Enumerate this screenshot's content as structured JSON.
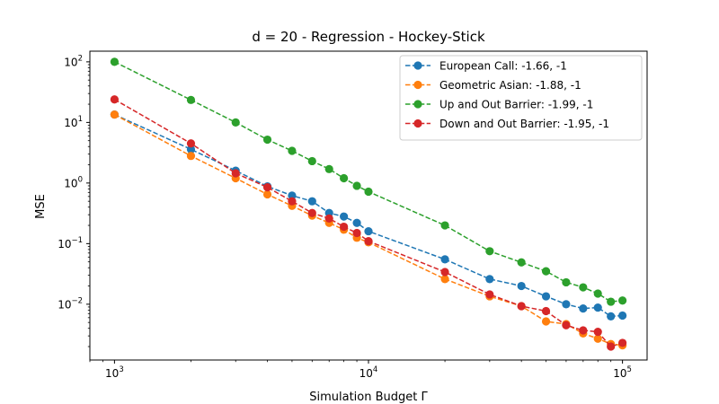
{
  "chart_data": {
    "type": "line",
    "title": "d = 20 - Regression - Hockey-Stick",
    "xlabel": "Simulation Budget Γ",
    "ylabel": "MSE",
    "xscale": "log",
    "yscale": "log",
    "xlim": [
      800,
      125000
    ],
    "ylim": [
      0.0012,
      150
    ],
    "x_ticks": [
      {
        "value": 1000,
        "base": "10",
        "exp": "3"
      },
      {
        "value": 10000,
        "base": "10",
        "exp": "4"
      },
      {
        "value": 100000,
        "base": "10",
        "exp": "5"
      }
    ],
    "y_ticks": [
      {
        "value": 0.01,
        "base": "10",
        "exp": "−2"
      },
      {
        "value": 0.1,
        "base": "10",
        "exp": "−1"
      },
      {
        "value": 1,
        "base": "10",
        "exp": "0"
      },
      {
        "value": 10,
        "base": "10",
        "exp": "1"
      },
      {
        "value": 100,
        "base": "10",
        "exp": "2"
      }
    ],
    "grid": false,
    "legend_position": "top-right",
    "x": [
      1000,
      2000,
      3000,
      4000,
      5000,
      6000,
      7000,
      8000,
      9000,
      10000,
      20000,
      30000,
      40000,
      50000,
      60000,
      70000,
      80000,
      90000,
      100000
    ],
    "series": [
      {
        "name": "European Call: -1.66, -1",
        "color": "#1f77b4",
        "values": [
          13.5,
          3.6,
          1.6,
          0.88,
          0.62,
          0.5,
          0.32,
          0.28,
          0.22,
          0.16,
          0.055,
          0.026,
          0.02,
          0.0135,
          0.01,
          0.0085,
          0.0088,
          0.0063,
          0.0065
        ]
      },
      {
        "name": "Geometric Asian: -1.88, -1",
        "color": "#ff7f0e",
        "values": [
          13.5,
          2.8,
          1.2,
          0.65,
          0.42,
          0.29,
          0.22,
          0.17,
          0.125,
          0.105,
          0.026,
          0.0135,
          0.0093,
          0.0052,
          0.0047,
          0.0033,
          0.0027,
          0.0022,
          0.0021
        ]
      },
      {
        "name": "Up and Out Barrier: -1.99, -1",
        "color": "#2ca02c",
        "values": [
          100,
          23.5,
          10,
          5.2,
          3.4,
          2.3,
          1.7,
          1.2,
          0.9,
          0.72,
          0.2,
          0.075,
          0.049,
          0.035,
          0.023,
          0.019,
          0.015,
          0.011,
          0.0115
        ]
      },
      {
        "name": "Down and Out Barrier: -1.95, -1",
        "color": "#d62728",
        "values": [
          24,
          4.5,
          1.45,
          0.85,
          0.5,
          0.32,
          0.26,
          0.19,
          0.15,
          0.11,
          0.034,
          0.0145,
          0.0093,
          0.0077,
          0.0045,
          0.0037,
          0.0035,
          0.002,
          0.0023
        ]
      }
    ]
  }
}
